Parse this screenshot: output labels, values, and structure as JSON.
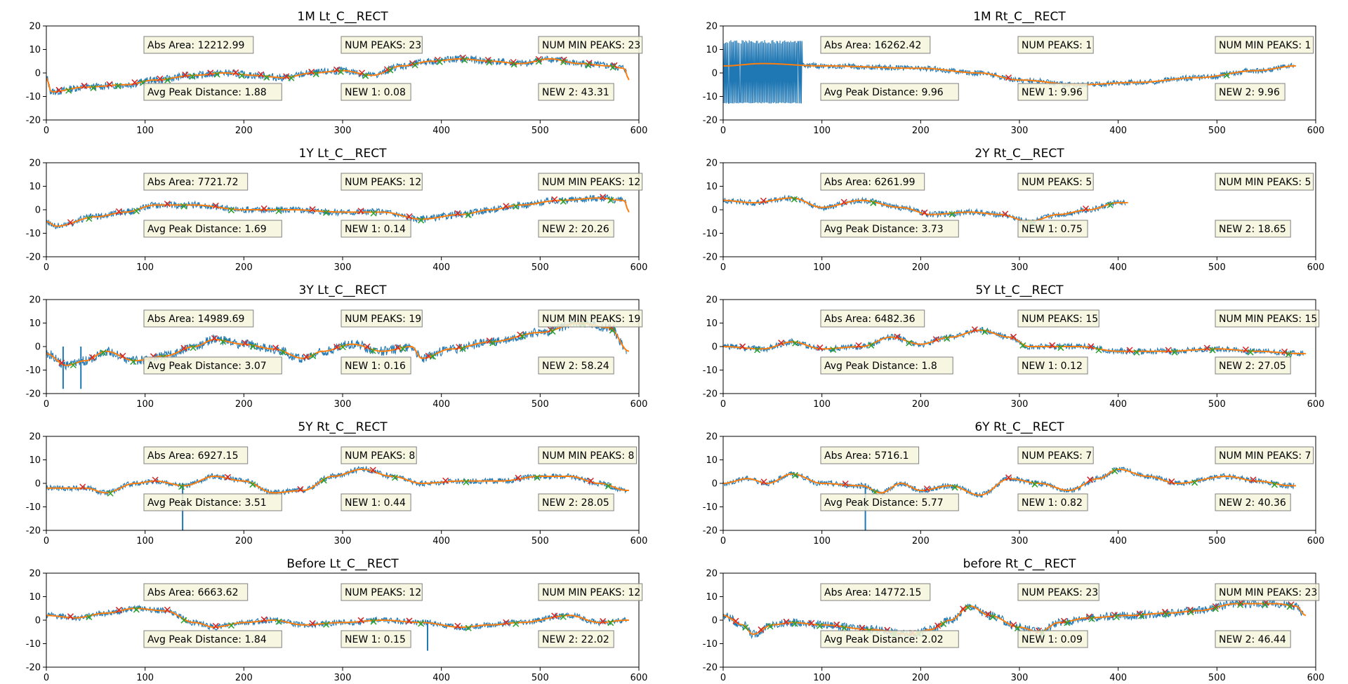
{
  "figure": {
    "background": "#ffffff"
  },
  "colors": {
    "signal": "#1f77b4",
    "smooth": "#ff7f0e",
    "peak_max": "#d62728",
    "peak_min": "#2ca02c",
    "box_face": "#f5f5dc",
    "box_edge": "#808080"
  },
  "chart_data": [
    {
      "type": "line",
      "title": "1M Lt_C__RECT",
      "xlim": [
        0,
        600
      ],
      "ylim": [
        -20,
        20
      ],
      "xticks": [
        0,
        100,
        200,
        300,
        400,
        500,
        600
      ],
      "yticks": [
        -20,
        -10,
        0,
        10,
        20
      ],
      "x_max": 588,
      "noise": 1.6,
      "smooth": [
        [
          0,
          -2
        ],
        [
          5,
          -8
        ],
        [
          40,
          -6
        ],
        [
          80,
          -5
        ],
        [
          110,
          -3
        ],
        [
          150,
          -1
        ],
        [
          180,
          0
        ],
        [
          210,
          -1
        ],
        [
          240,
          -2
        ],
        [
          270,
          0
        ],
        [
          300,
          1
        ],
        [
          330,
          -1
        ],
        [
          360,
          3
        ],
        [
          390,
          5
        ],
        [
          420,
          6
        ],
        [
          450,
          5
        ],
        [
          480,
          4
        ],
        [
          510,
          6
        ],
        [
          540,
          4
        ],
        [
          570,
          3
        ],
        [
          585,
          2
        ],
        [
          590,
          -3
        ]
      ],
      "spikes": [],
      "annotations": {
        "abs_area": "Abs Area: 12212.99",
        "num_peaks": "NUM PEAKS: 23",
        "num_min_peaks": "NUM MIN PEAKS: 23",
        "avg_peak_distance": "Avg Peak Distance: 1.88",
        "new1": "NEW 1: 0.08",
        "new2": "NEW 2: 43.31"
      }
    },
    {
      "type": "line",
      "title": "1M Rt_C__RECT",
      "xlim": [
        0,
        600
      ],
      "ylim": [
        -20,
        20
      ],
      "xticks": [
        0,
        100,
        200,
        300,
        400,
        500,
        600
      ],
      "yticks": [
        -20,
        -10,
        0,
        10,
        20
      ],
      "x_max": 578,
      "noise": 1.2,
      "block": [
        0,
        80,
        -13,
        14
      ],
      "smooth": [
        [
          0,
          3
        ],
        [
          40,
          4
        ],
        [
          100,
          3
        ],
        [
          200,
          2
        ],
        [
          260,
          0
        ],
        [
          300,
          -3
        ],
        [
          360,
          -5
        ],
        [
          420,
          -4
        ],
        [
          480,
          -2
        ],
        [
          540,
          1
        ],
        [
          580,
          3
        ]
      ],
      "spikes": [],
      "annotations": {
        "abs_area": "Abs Area: 16262.42",
        "num_peaks": "NUM PEAKS: 1",
        "num_min_peaks": "NUM MIN PEAKS: 1",
        "avg_peak_distance": "Avg Peak Distance: 9.96",
        "new1": "NEW 1: 9.96",
        "new2": "NEW 2: 9.96"
      }
    },
    {
      "type": "line",
      "title": "1Y Lt_C__RECT",
      "xlim": [
        0,
        600
      ],
      "ylim": [
        -20,
        20
      ],
      "xticks": [
        0,
        100,
        200,
        300,
        400,
        500,
        600
      ],
      "yticks": [
        -20,
        -10,
        0,
        10,
        20
      ],
      "x_max": 588,
      "noise": 1.5,
      "smooth": [
        [
          0,
          -5
        ],
        [
          10,
          -7
        ],
        [
          50,
          -3
        ],
        [
          80,
          -1
        ],
        [
          110,
          2
        ],
        [
          150,
          2
        ],
        [
          200,
          0
        ],
        [
          250,
          0
        ],
        [
          300,
          -1
        ],
        [
          340,
          -1
        ],
        [
          380,
          -4
        ],
        [
          420,
          -2
        ],
        [
          450,
          0
        ],
        [
          480,
          2
        ],
        [
          520,
          4
        ],
        [
          560,
          5
        ],
        [
          585,
          4
        ],
        [
          590,
          -1
        ]
      ],
      "spikes": [],
      "annotations": {
        "abs_area": "Abs Area: 7721.72",
        "num_peaks": "NUM PEAKS: 12",
        "num_min_peaks": "NUM MIN PEAKS: 12",
        "avg_peak_distance": "Avg Peak Distance: 1.69",
        "new1": "NEW 1: 0.14",
        "new2": "NEW 2: 20.26"
      }
    },
    {
      "type": "line",
      "title": "2Y Rt_C__RECT",
      "xlim": [
        0,
        600
      ],
      "ylim": [
        -20,
        20
      ],
      "xticks": [
        0,
        100,
        200,
        300,
        400,
        500,
        600
      ],
      "yticks": [
        -20,
        -10,
        0,
        10,
        20
      ],
      "x_max": 408,
      "noise": 1.3,
      "smooth": [
        [
          0,
          4
        ],
        [
          30,
          3
        ],
        [
          70,
          5
        ],
        [
          100,
          1
        ],
        [
          140,
          4
        ],
        [
          180,
          1
        ],
        [
          210,
          -2
        ],
        [
          250,
          -1
        ],
        [
          280,
          -2
        ],
        [
          310,
          -5
        ],
        [
          340,
          -2
        ],
        [
          370,
          0
        ],
        [
          400,
          3
        ]
      ],
      "spikes": [],
      "annotations": {
        "abs_area": "Abs Area: 6261.99",
        "num_peaks": "NUM PEAKS: 5",
        "num_min_peaks": "NUM MIN PEAKS: 5",
        "avg_peak_distance": "Avg Peak Distance: 3.73",
        "new1": "NEW 1: 0.75",
        "new2": "NEW 2: 18.65"
      }
    },
    {
      "type": "line",
      "title": "3Y Lt_C__RECT",
      "xlim": [
        0,
        600
      ],
      "ylim": [
        -20,
        20
      ],
      "xticks": [
        0,
        100,
        200,
        300,
        400,
        500,
        600
      ],
      "yticks": [
        -20,
        -10,
        0,
        10,
        20
      ],
      "x_max": 588,
      "noise": 2.0,
      "smooth": [
        [
          0,
          -3
        ],
        [
          20,
          -8
        ],
        [
          40,
          -6
        ],
        [
          60,
          -2
        ],
        [
          90,
          -6
        ],
        [
          120,
          -4
        ],
        [
          150,
          0
        ],
        [
          170,
          3
        ],
        [
          200,
          1
        ],
        [
          230,
          -1
        ],
        [
          260,
          -5
        ],
        [
          280,
          -2
        ],
        [
          310,
          1
        ],
        [
          340,
          -2
        ],
        [
          370,
          0
        ],
        [
          380,
          -5
        ],
        [
          410,
          -1
        ],
        [
          450,
          2
        ],
        [
          500,
          6
        ],
        [
          540,
          10
        ],
        [
          570,
          8
        ],
        [
          590,
          -2
        ]
      ],
      "spikes": [
        [
          17,
          -18
        ],
        [
          35,
          -18
        ]
      ],
      "annotations": {
        "abs_area": "Abs Area: 14989.69",
        "num_peaks": "NUM PEAKS: 19",
        "num_min_peaks": "NUM MIN PEAKS: 19",
        "avg_peak_distance": "Avg Peak Distance: 3.07",
        "new1": "NEW 1: 0.16",
        "new2": "NEW 2: 58.24"
      }
    },
    {
      "type": "line",
      "title": "5Y Lt_C__RECT",
      "xlim": [
        0,
        600
      ],
      "ylim": [
        -20,
        20
      ],
      "xticks": [
        0,
        100,
        200,
        300,
        400,
        500,
        600
      ],
      "yticks": [
        -20,
        -10,
        0,
        10,
        20
      ],
      "x_max": 588,
      "noise": 1.3,
      "smooth": [
        [
          0,
          0
        ],
        [
          40,
          -1
        ],
        [
          70,
          2
        ],
        [
          100,
          -1
        ],
        [
          140,
          0
        ],
        [
          170,
          4
        ],
        [
          200,
          1
        ],
        [
          230,
          4
        ],
        [
          260,
          7
        ],
        [
          290,
          4
        ],
        [
          310,
          0
        ],
        [
          360,
          0
        ],
        [
          400,
          -2
        ],
        [
          450,
          -2
        ],
        [
          500,
          -1
        ],
        [
          540,
          -2
        ],
        [
          585,
          -3
        ]
      ],
      "spikes": [],
      "annotations": {
        "abs_area": "Abs Area: 6482.36",
        "num_peaks": "NUM PEAKS: 15",
        "num_min_peaks": "NUM MIN PEAKS: 15",
        "avg_peak_distance": "Avg Peak Distance: 1.8",
        "new1": "NEW 1: 0.12",
        "new2": "NEW 2: 27.05"
      }
    },
    {
      "type": "line",
      "title": "5Y Rt_C__RECT",
      "xlim": [
        0,
        600
      ],
      "ylim": [
        -20,
        20
      ],
      "xticks": [
        0,
        100,
        200,
        300,
        400,
        500,
        600
      ],
      "yticks": [
        -20,
        -10,
        0,
        10,
        20
      ],
      "x_max": 588,
      "noise": 1.2,
      "smooth": [
        [
          0,
          -2
        ],
        [
          40,
          -2
        ],
        [
          60,
          -4
        ],
        [
          90,
          0
        ],
        [
          110,
          1
        ],
        [
          140,
          -1
        ],
        [
          170,
          3
        ],
        [
          200,
          1
        ],
        [
          230,
          -4
        ],
        [
          260,
          -3
        ],
        [
          290,
          3
        ],
        [
          320,
          6
        ],
        [
          350,
          3
        ],
        [
          380,
          0
        ],
        [
          420,
          1
        ],
        [
          460,
          1
        ],
        [
          500,
          3
        ],
        [
          530,
          3
        ],
        [
          560,
          0
        ],
        [
          588,
          -3
        ]
      ],
      "spikes": [
        [
          138,
          -20
        ]
      ],
      "annotations": {
        "abs_area": "Abs Area: 6927.15",
        "num_peaks": "NUM PEAKS: 8",
        "num_min_peaks": "NUM MIN PEAKS: 8",
        "avg_peak_distance": "Avg Peak Distance: 3.51",
        "new1": "NEW 1: 0.44",
        "new2": "NEW 2: 28.05"
      }
    },
    {
      "type": "line",
      "title": "6Y Rt_C__RECT",
      "xlim": [
        0,
        600
      ],
      "ylim": [
        -20,
        20
      ],
      "xticks": [
        0,
        100,
        200,
        300,
        400,
        500,
        600
      ],
      "yticks": [
        -20,
        -10,
        0,
        10,
        20
      ],
      "x_max": 578,
      "noise": 1.2,
      "smooth": [
        [
          0,
          0
        ],
        [
          25,
          2
        ],
        [
          45,
          0
        ],
        [
          70,
          4
        ],
        [
          100,
          0
        ],
        [
          140,
          -1
        ],
        [
          160,
          -4
        ],
        [
          180,
          0
        ],
        [
          200,
          -3
        ],
        [
          230,
          -1
        ],
        [
          260,
          -5
        ],
        [
          290,
          2
        ],
        [
          320,
          0
        ],
        [
          350,
          -3
        ],
        [
          380,
          2
        ],
        [
          400,
          6
        ],
        [
          430,
          3
        ],
        [
          460,
          0
        ],
        [
          510,
          3
        ],
        [
          540,
          1
        ],
        [
          575,
          -1
        ]
      ],
      "spikes": [
        [
          144,
          -20
        ]
      ],
      "annotations": {
        "abs_area": "Abs Area: 5716.1",
        "num_peaks": "NUM PEAKS: 7",
        "num_min_peaks": "NUM MIN PEAKS: 7",
        "avg_peak_distance": "Avg Peak Distance: 5.77",
        "new1": "NEW 1: 0.82",
        "new2": "NEW 2: 40.36"
      }
    },
    {
      "type": "line",
      "title": "Before Lt_C__RECT",
      "xlim": [
        0,
        600
      ],
      "ylim": [
        -20,
        20
      ],
      "xticks": [
        0,
        100,
        200,
        300,
        400,
        500,
        600
      ],
      "yticks": [
        -20,
        -10,
        0,
        10,
        20
      ],
      "x_max": 588,
      "noise": 1.3,
      "smooth": [
        [
          0,
          2
        ],
        [
          30,
          1
        ],
        [
          60,
          3
        ],
        [
          90,
          5
        ],
        [
          120,
          4
        ],
        [
          150,
          -1
        ],
        [
          170,
          -3
        ],
        [
          200,
          -1
        ],
        [
          230,
          0
        ],
        [
          260,
          -2
        ],
        [
          300,
          -1
        ],
        [
          340,
          0
        ],
        [
          380,
          -1
        ],
        [
          420,
          -3
        ],
        [
          450,
          -2
        ],
        [
          480,
          -1
        ],
        [
          530,
          2
        ],
        [
          560,
          -1
        ],
        [
          588,
          0
        ]
      ],
      "spikes": [
        [
          386,
          -13
        ]
      ],
      "annotations": {
        "abs_area": "Abs Area: 6663.62",
        "num_peaks": "NUM PEAKS: 12",
        "num_min_peaks": "NUM MIN PEAKS: 12",
        "avg_peak_distance": "Avg Peak Distance: 1.84",
        "new1": "NEW 1: 0.15",
        "new2": "NEW 2: 22.02"
      }
    },
    {
      "type": "line",
      "title": "before Rt_C__RECT",
      "xlim": [
        0,
        600
      ],
      "ylim": [
        -20,
        20
      ],
      "xticks": [
        0,
        100,
        200,
        300,
        400,
        500,
        600
      ],
      "yticks": [
        -20,
        -10,
        0,
        10,
        20
      ],
      "x_max": 588,
      "noise": 1.8,
      "smooth": [
        [
          0,
          2
        ],
        [
          20,
          -2
        ],
        [
          30,
          -6
        ],
        [
          50,
          -2
        ],
        [
          70,
          -1
        ],
        [
          100,
          -2
        ],
        [
          150,
          -4
        ],
        [
          190,
          -6
        ],
        [
          210,
          -4
        ],
        [
          230,
          0
        ],
        [
          250,
          6
        ],
        [
          270,
          2
        ],
        [
          300,
          -3
        ],
        [
          320,
          -5
        ],
        [
          340,
          -1
        ],
        [
          370,
          1
        ],
        [
          410,
          2
        ],
        [
          450,
          3
        ],
        [
          480,
          4
        ],
        [
          520,
          7
        ],
        [
          560,
          7
        ],
        [
          580,
          6
        ],
        [
          590,
          2
        ]
      ],
      "spikes": [],
      "annotations": {
        "abs_area": "Abs Area: 14772.15",
        "num_peaks": "NUM PEAKS: 23",
        "num_min_peaks": "NUM MIN PEAKS: 23",
        "avg_peak_distance": "Avg Peak Distance: 2.02",
        "new1": "NEW 1: 0.09",
        "new2": "NEW 2: 46.44"
      }
    }
  ]
}
